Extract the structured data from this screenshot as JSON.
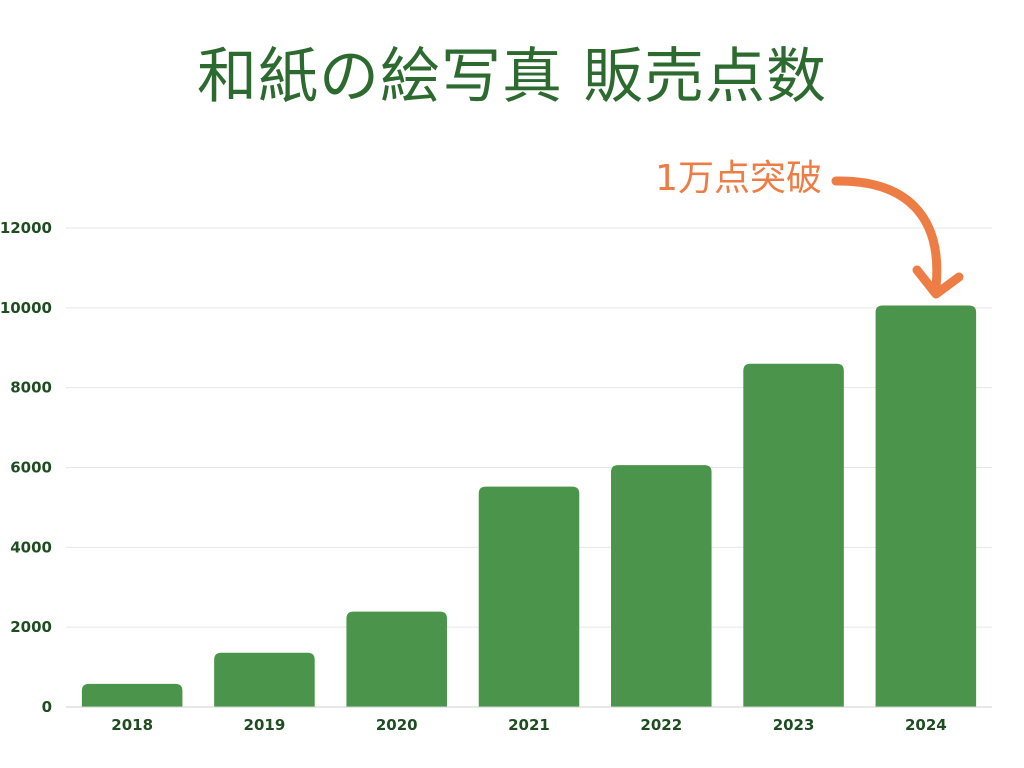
{
  "title": "和紙の絵写真 販売点数",
  "annotation": {
    "text": "1万点突破",
    "color": "#ee7d45"
  },
  "colors": {
    "bar": "#4a944b",
    "text": "#2d6a2f",
    "grid": "#e6e6e6"
  },
  "chart_data": {
    "type": "bar",
    "title": "和紙の絵写真 販売点数",
    "categories": [
      "2018",
      "2019",
      "2020",
      "2021",
      "2022",
      "2023",
      "2024"
    ],
    "values": [
      580,
      1360,
      2390,
      5520,
      6060,
      8600,
      10060
    ],
    "yticks": [
      0,
      2000,
      4000,
      6000,
      8000,
      10000,
      12000
    ],
    "ylim": [
      0,
      12000
    ],
    "grid": true,
    "xlabel": "",
    "ylabel": ""
  }
}
